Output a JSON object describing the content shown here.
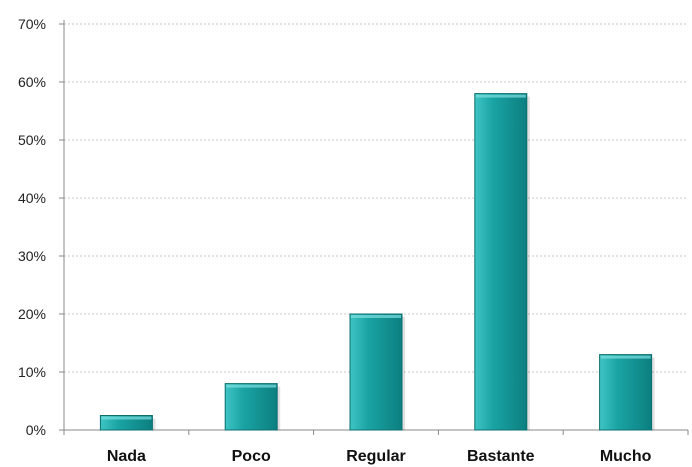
{
  "chart_data": {
    "type": "bar",
    "title": "",
    "xlabel": "",
    "ylabel": "",
    "categories": [
      "Nada",
      "Poco",
      "Regular",
      "Bastante",
      "Mucho"
    ],
    "values": [
      2.5,
      8,
      20,
      58,
      13
    ],
    "y_ticks": [
      "0%",
      "10%",
      "20%",
      "30%",
      "40%",
      "50%",
      "60%",
      "70%"
    ],
    "ylim": [
      0,
      70
    ],
    "y_unit": "%",
    "grid": true,
    "legend": "none",
    "colors": {
      "bar_fill_top": "#3fc4c4",
      "bar_fill_mid": "#1aa3a3",
      "bar_fill_bottom": "#0c7f80",
      "bar_stroke": "#0b6f70",
      "grid": "#c9c9c9",
      "axis": "#8a8a8a"
    }
  }
}
